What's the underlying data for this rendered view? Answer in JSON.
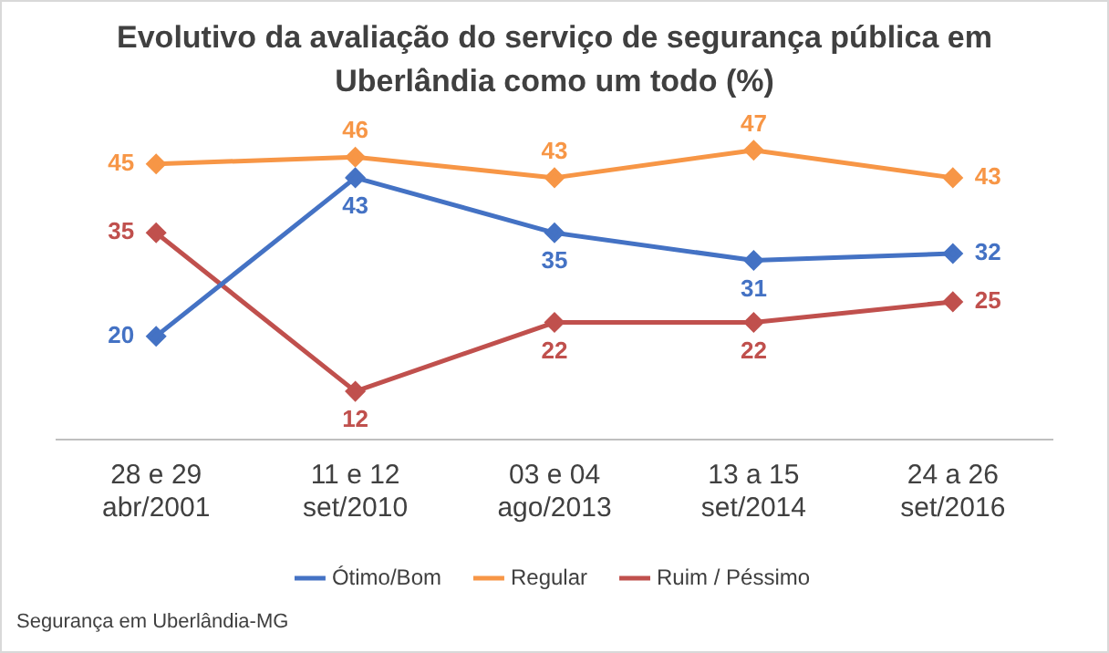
{
  "chart_data": {
    "type": "line",
    "title": "Evolutivo da avaliação do serviço de segurança pública em Uberlândia como um todo (%)",
    "categories": [
      "28 e 29\nabr/2001",
      "11 e 12\nset/2010",
      "03 e 04\nago/2013",
      "13 a 15\nset/2014",
      "24 a 26\nset/2016"
    ],
    "series": [
      {
        "name": "Ótimo/Bom",
        "color": "#4472c4",
        "values": [
          20,
          43,
          35,
          31,
          32
        ]
      },
      {
        "name": "Regular",
        "color": "#f79646",
        "values": [
          45,
          46,
          43,
          47,
          43
        ]
      },
      {
        "name": "Ruim / Péssimo",
        "color": "#c0504d",
        "values": [
          35,
          12,
          22,
          22,
          25
        ]
      }
    ],
    "tick_labels": "x",
    "data_labels": true,
    "legend": "bottom",
    "grid": false,
    "marker": "diamond",
    "line_style": "solid",
    "annotations": [
      "Segurança em Uberlândia-MG"
    ]
  }
}
